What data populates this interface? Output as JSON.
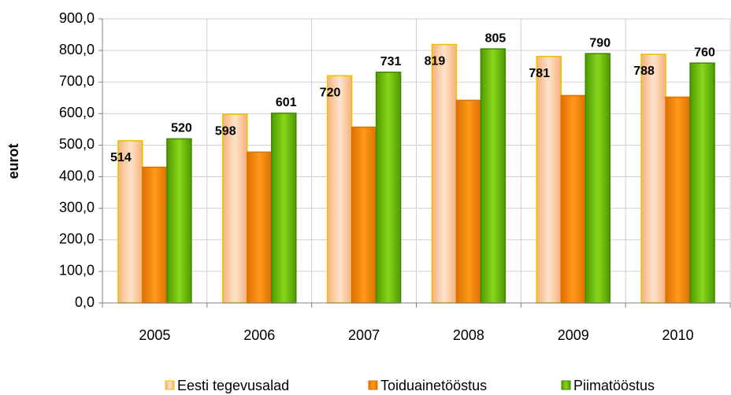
{
  "chart_data": {
    "type": "bar",
    "y_label": "eurot",
    "categories": [
      "2005",
      "2006",
      "2007",
      "2008",
      "2009",
      "2010"
    ],
    "series": [
      {
        "name": "Eesti tegevusalad",
        "color": "#f9c99a",
        "values": [
          514,
          598,
          720,
          819,
          781,
          788
        ],
        "data_labels": true
      },
      {
        "name": "Toiduainetööstus",
        "color": "#f28500",
        "values": [
          430,
          478,
          557,
          642,
          657,
          652
        ],
        "data_labels": false
      },
      {
        "name": "Piimatööstus",
        "color": "#66b800",
        "values": [
          520,
          601,
          731,
          805,
          790,
          760
        ],
        "data_labels": true
      }
    ],
    "ylim": [
      0,
      900
    ],
    "yticks": [
      {
        "value": 0,
        "label": "0,0"
      },
      {
        "value": 100,
        "label": "100,0"
      },
      {
        "value": 200,
        "label": "200,0"
      },
      {
        "value": 300,
        "label": "300,0"
      },
      {
        "value": 400,
        "label": "400,0"
      },
      {
        "value": 500,
        "label": "500,0"
      },
      {
        "value": 600,
        "label": "600,0"
      },
      {
        "value": 700,
        "label": "700,0"
      },
      {
        "value": 800,
        "label": "800,0"
      },
      {
        "value": 900,
        "label": "900,0"
      }
    ],
    "grid": true,
    "legend": "bottom"
  }
}
